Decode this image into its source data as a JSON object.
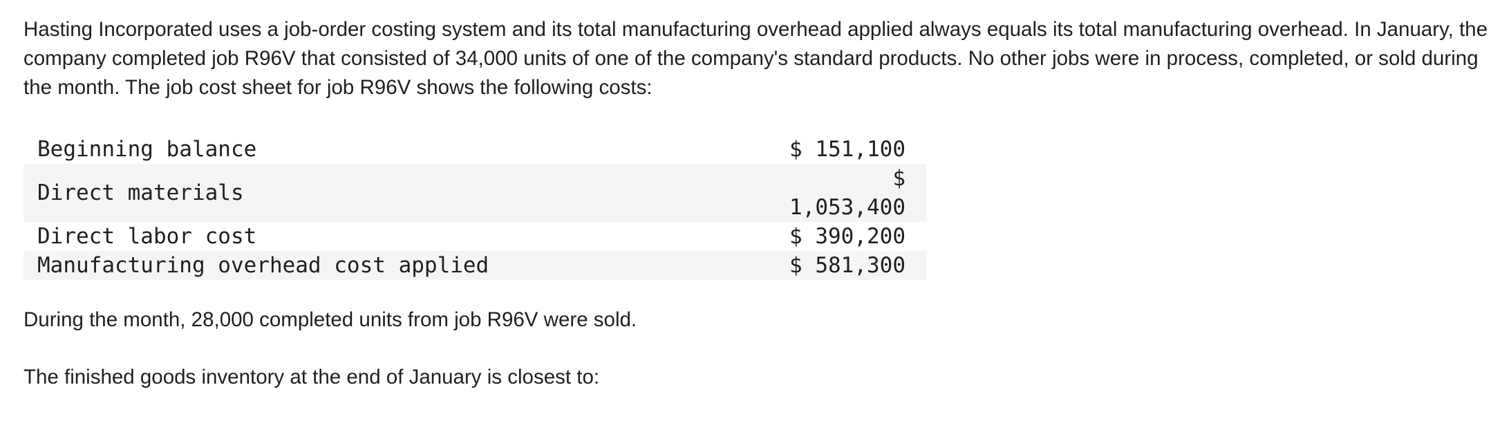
{
  "intro_text": "Hasting Incorporated uses a job-order costing system and its total manufacturing overhead applied always equals its total manufacturing overhead. In January, the company completed job R96V that consisted of 34,000 units of one of the company's standard products. No other jobs were in process, completed, or sold during the month. The job cost sheet for job R96V shows the following costs:",
  "cost_rows": [
    {
      "label": "Beginning balance",
      "amount": "$ 151,100"
    },
    {
      "label": "Direct materials",
      "amount_line1": "$",
      "amount_line2": "1,053,400"
    },
    {
      "label": "Direct labor cost",
      "amount": "$ 390,200"
    },
    {
      "label": "Manufacturing overhead cost applied",
      "amount": "$ 581,300"
    }
  ],
  "sold_text": "During the month, 28,000 completed units from job R96V were sold.",
  "question_text": "The finished goods inventory at the end of January is closest to:"
}
